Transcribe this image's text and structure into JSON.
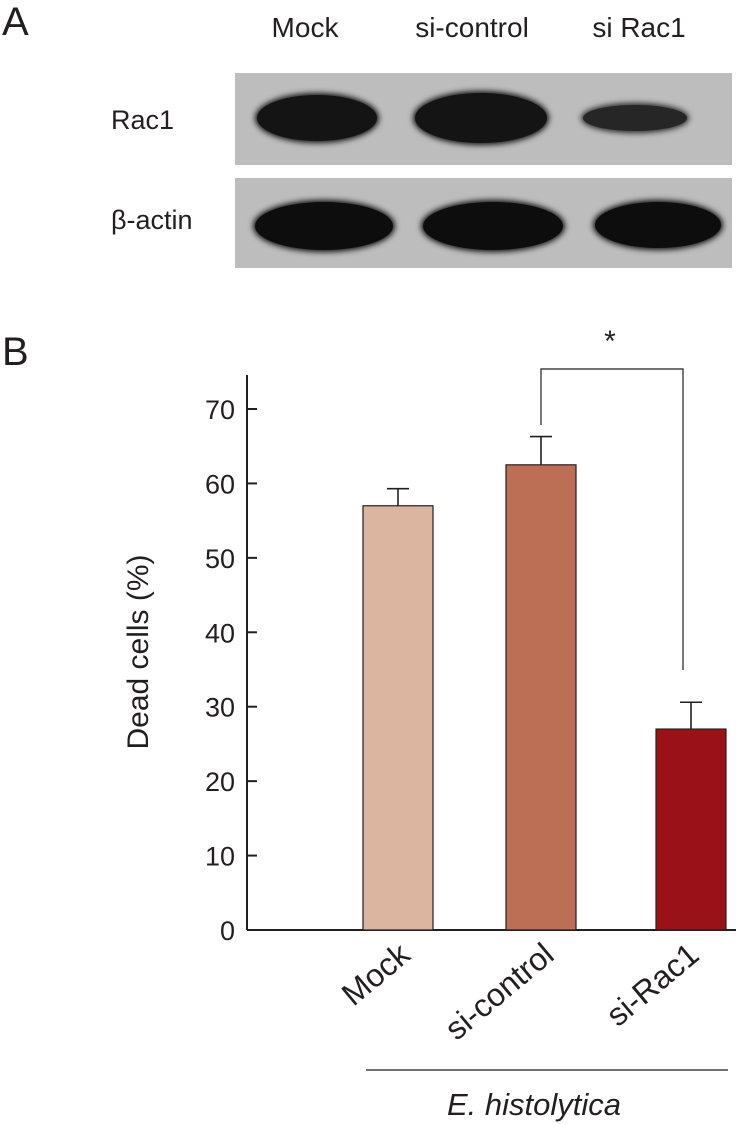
{
  "panel_a": {
    "letter": "A",
    "lanes": [
      "Mock",
      "si-control",
      "si Rac1"
    ],
    "rows": [
      "Rac1",
      "β-actin"
    ]
  },
  "panel_b": {
    "letter": "B",
    "group_label": "E. histolytica",
    "significance": "*"
  },
  "chart_data": {
    "type": "bar",
    "categories": [
      "Mock",
      "si-control",
      "si-Rac1"
    ],
    "values": [
      57,
      62.5,
      27
    ],
    "errors": [
      2.3,
      3.8,
      3.6
    ],
    "colors": [
      "#dcb5a0",
      "#bc6f55",
      "#9a1217"
    ],
    "ylabel": "Dead cells (%)",
    "ylim": [
      0,
      75
    ],
    "yticks": [
      0,
      10,
      20,
      30,
      40,
      50,
      60,
      70
    ],
    "grid": false
  }
}
